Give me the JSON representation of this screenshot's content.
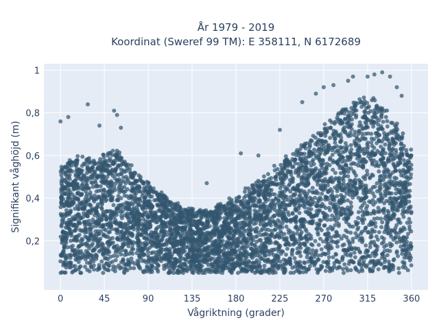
{
  "chart_data": {
    "type": "scatter",
    "title_line1": "År 1979 - 2019",
    "title_line2": "Koordinat (Sweref 99 TM): E 358111, N 6172689",
    "xlabel": "Vågriktning (grader)",
    "ylabel": "Signifikant våghöjd (m)",
    "xlim": [
      -17,
      377
    ],
    "ylim": [
      -0.03,
      1.03
    ],
    "x_ticks": [
      0,
      45,
      90,
      135,
      180,
      225,
      270,
      315,
      360
    ],
    "x_tick_labels": [
      "0",
      "45",
      "90",
      "135",
      "180",
      "225",
      "270",
      "315",
      "360"
    ],
    "y_ticks": [
      0.2,
      0.4,
      0.6,
      0.8,
      1
    ],
    "y_tick_labels": [
      "0,2",
      "0,4",
      "0,6",
      "0,8",
      "1"
    ],
    "grid": true,
    "marker_color": "#33566f",
    "plot_background": "#e5ecf6",
    "x_range": [
      0,
      360
    ],
    "y_min": 0.05,
    "upper_envelope": {
      "x": [
        0,
        15,
        30,
        45,
        55,
        65,
        80,
        95,
        110,
        125,
        140,
        155,
        170,
        185,
        200,
        215,
        230,
        245,
        260,
        275,
        290,
        305,
        315,
        325,
        340,
        350,
        360
      ],
      "y": [
        0.55,
        0.6,
        0.58,
        0.6,
        0.63,
        0.6,
        0.5,
        0.45,
        0.4,
        0.36,
        0.34,
        0.35,
        0.38,
        0.42,
        0.47,
        0.53,
        0.58,
        0.64,
        0.7,
        0.76,
        0.82,
        0.86,
        0.88,
        0.86,
        0.78,
        0.7,
        0.62
      ]
    },
    "outliers": [
      {
        "x": 0,
        "y": 0.76
      },
      {
        "x": 8,
        "y": 0.78
      },
      {
        "x": 28,
        "y": 0.84
      },
      {
        "x": 55,
        "y": 0.81
      },
      {
        "x": 58,
        "y": 0.79
      },
      {
        "x": 62,
        "y": 0.73
      },
      {
        "x": 40,
        "y": 0.74
      },
      {
        "x": 150,
        "y": 0.47
      },
      {
        "x": 185,
        "y": 0.61
      },
      {
        "x": 203,
        "y": 0.6
      },
      {
        "x": 225,
        "y": 0.72
      },
      {
        "x": 270,
        "y": 0.92
      },
      {
        "x": 295,
        "y": 0.95
      },
      {
        "x": 300,
        "y": 0.97
      },
      {
        "x": 315,
        "y": 0.97
      },
      {
        "x": 322,
        "y": 0.98
      },
      {
        "x": 330,
        "y": 0.99
      },
      {
        "x": 338,
        "y": 0.97
      },
      {
        "x": 345,
        "y": 0.92
      },
      {
        "x": 350,
        "y": 0.88
      },
      {
        "x": 280,
        "y": 0.93
      },
      {
        "x": 262,
        "y": 0.89
      },
      {
        "x": 248,
        "y": 0.85
      }
    ],
    "point_count": 5200
  }
}
